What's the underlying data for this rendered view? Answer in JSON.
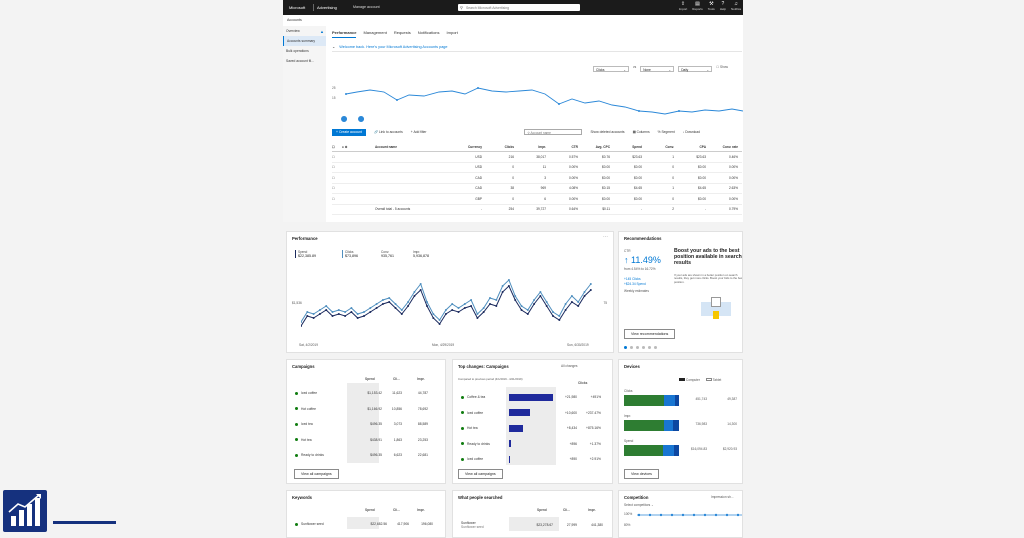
{
  "topbar": {
    "brand": "Microsoft",
    "app_name": "Advertising",
    "account": "Manage account",
    "search_placeholder": "Search Microsoft Advertising",
    "tools": [
      {
        "label": "Import",
        "icon": "import-icon"
      },
      {
        "label": "Reports",
        "icon": "reports-icon"
      },
      {
        "label": "Tools",
        "icon": "tools-icon"
      },
      {
        "label": "Help",
        "icon": "help-icon"
      },
      {
        "label": "Notifica",
        "icon": "bell-icon"
      }
    ]
  },
  "breadcrumb": "Accounts",
  "sidenav": {
    "items": [
      "Overview",
      "Accounts summary",
      "Bulk operations",
      "Saved account fil..."
    ]
  },
  "tabs": [
    "Performance",
    "Management",
    "Requests",
    "Notifications",
    "Import"
  ],
  "welcome": "Welcome back. Here's your Microsoft Advertising Accounts page",
  "controls": {
    "metric1": "Clicks",
    "vs": "vs",
    "metric2": "None",
    "granularity": "Daily",
    "show": "Show"
  },
  "toolbar": {
    "create": "Create account",
    "link": "Link to accounts",
    "filter": "Add filter",
    "search_placeholder": "Account name",
    "show_deleted": "Show deleted accounts",
    "columns": "Columns",
    "segment": "Segment",
    "download": "Download"
  },
  "accounts_table": {
    "headers": [
      "Account name",
      "Currency",
      "Clicks",
      "Impr.",
      "CTR",
      "Avg. CPC",
      "Spend",
      "Conv.",
      "CPA",
      "Conv. rate"
    ],
    "rows": [
      [
        "",
        "USD",
        "216",
        "38,017",
        "0.57%",
        "$0.76",
        "$23.63",
        "1",
        "$23.63",
        "0.46%"
      ],
      [
        "",
        "USD",
        "0",
        "11",
        "0.00%",
        "$0.00",
        "$0.00",
        "0",
        "$0.00",
        "0.00%"
      ],
      [
        "",
        "CAD",
        "0",
        "3",
        "0.00%",
        "$0.00",
        "$0.00",
        "0",
        "$0.00",
        "0.00%"
      ],
      [
        "",
        "CAD",
        "38",
        "969",
        "4.08%",
        "$0.15",
        "$4.65",
        "1",
        "$4.65",
        "2.63%"
      ],
      [
        "",
        "GBP",
        "0",
        "6",
        "0.00%",
        "$0.00",
        "$0.00",
        "0",
        "$0.00",
        "0.00%"
      ]
    ],
    "total": [
      "Overall total - 5 accounts",
      "-",
      "254",
      "39,727",
      "0.64%",
      "$0.11",
      "-",
      "2",
      "-",
      "0.79%"
    ]
  },
  "performance_card": {
    "title": "Performance",
    "metrics": [
      {
        "label": "Spend",
        "value": "$22,385.89"
      },
      {
        "label": "Clicks",
        "value": "$73,896"
      },
      {
        "label": "Conv.",
        "value": "935,761"
      },
      {
        "label": "Impr.",
        "value": "5,936,878"
      }
    ],
    "y_left": "$1,536",
    "y_right": "75",
    "x_start": "Sat, 4/2/2019",
    "x_mid": "Mon, 4/29/2019",
    "x_end": "Sun, 6/30/2019",
    "colors": {
      "spend": "#1b2a5e",
      "clicks": "#4f8fbf"
    }
  },
  "recommendations_card": {
    "title": "Recommendations",
    "metric": "CTR",
    "value": "11.49%",
    "from": "from 4.54% to 16.72%",
    "clicks": "+145 Clicks",
    "spend": "+$24.34 Spend",
    "weekly": "Weekly estimates",
    "headline": "Boost your ads to the best position available in search results",
    "body": "If your ads are shown in a better position on search results, they get more clicks. Boost your bids to the best position.",
    "button": "View recommendations"
  },
  "campaigns_card": {
    "title": "Campaigns",
    "headers": [
      "Spend",
      "Cli...",
      "Impr."
    ],
    "rows": [
      {
        "name": "Iced coffee",
        "spend": "$1,153.42",
        "clicks": "11,623",
        "impr": "44,787"
      },
      {
        "name": "Hot coffee",
        "spend": "$1,166.92",
        "clicks": "10,856",
        "impr": "78,692"
      },
      {
        "name": "Iced tea",
        "spend": "$496.35",
        "clicks": "3,073",
        "impr": "88,589"
      },
      {
        "name": "Hot tea",
        "spend": "$438.91",
        "clicks": "1,863",
        "impr": "23,253"
      },
      {
        "name": "Ready to drinks",
        "spend": "$496.35",
        "clicks": "6,623",
        "impr": "22,681"
      }
    ],
    "button": "View all campaigns"
  },
  "top_changes_card": {
    "title": "Top changes: Campaigns",
    "filter": "All changes",
    "compared": "Compared to previous period (4/1/2019 - 4/21/2019)",
    "metric": "Clicks",
    "rows": [
      {
        "name": "Coffee & tea",
        "change": "+21,980",
        "pct": "+491%",
        "bar": 1.0
      },
      {
        "name": "Iced coffee",
        "change": "+10,600",
        "pct": "+237.47%",
        "bar": 0.48
      },
      {
        "name": "Hot tea",
        "change": "+8,434",
        "pct": "+875.16%",
        "bar": 0.32
      },
      {
        "name": "Ready to drinks",
        "change": "+896",
        "pct": "+1.37%",
        "bar": 0.04
      },
      {
        "name": "Iced coffee",
        "change": "+890",
        "pct": "+2.91%",
        "bar": 0.03
      }
    ],
    "button": "View all campaigns"
  },
  "devices_card": {
    "title": "Devices",
    "legend": [
      "Computer",
      "Tablet"
    ],
    "rows": [
      {
        "label": "Clicks",
        "computer": "451,743",
        "tablet": "49,387",
        "computer_share": 0.72,
        "smartphone_share": 0.2
      },
      {
        "label": "Impr.",
        "computer": "736,983",
        "tablet": "14,300",
        "computer_share": 0.72,
        "smartphone_share": 0.18
      },
      {
        "label": "Spend",
        "computer": "$16,094.83",
        "tablet": "$2,920.93",
        "computer_share": 0.71,
        "smartphone_share": 0.2
      }
    ],
    "button": "View devices",
    "colors": {
      "computer": "#2e7d32",
      "smartphone": "#1976d2",
      "tablet": "#0d47a1"
    }
  },
  "keywords_card": {
    "title": "Keywords",
    "headers": [
      "Spend",
      "Cli...",
      "Impr."
    ],
    "rows": [
      {
        "name": "Sunflower seed",
        "spend": "$22,682.56",
        "clicks": "417,906",
        "impr": "196,080"
      }
    ]
  },
  "search_terms_card": {
    "title": "What people searched",
    "headers": [
      "Spend",
      "Cli...",
      "Impr."
    ],
    "rows": [
      {
        "name": "Sunflower",
        "sub": "Sunflower seed",
        "spend": "$23,278.67",
        "clicks": "27,999",
        "impr": "441,380"
      }
    ]
  },
  "competition_card": {
    "title": "Competition",
    "sub": "Impression sh...",
    "select": "Select competitors",
    "y1": "100%",
    "y2": "80%"
  }
}
